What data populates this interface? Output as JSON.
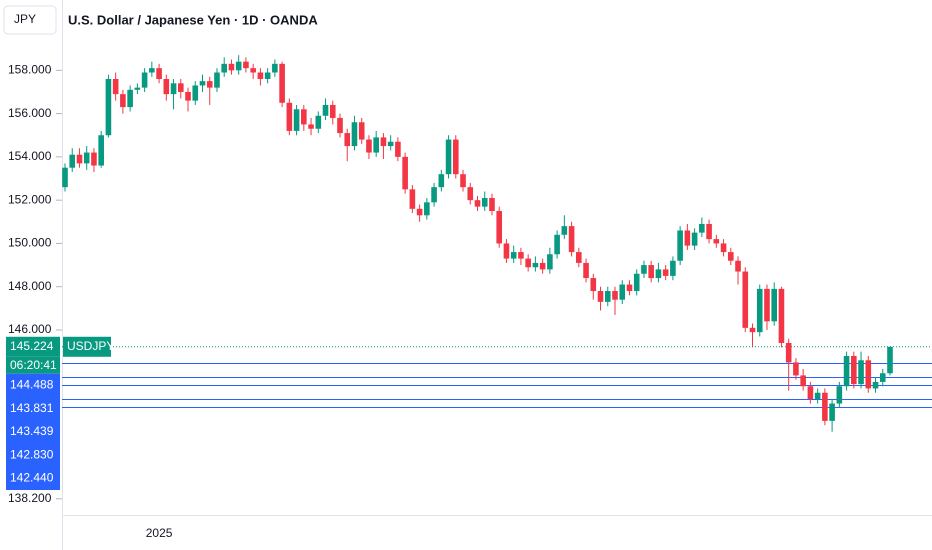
{
  "chart_data": {
    "type": "candlestick",
    "symbol_currency": "JPY",
    "title": "U.S. Dollar / Japanese Yen · 1D · OANDA",
    "xtick_labels": [
      "2025"
    ],
    "ylim": [
      137.45,
      161.25
    ],
    "yticks": [
      {
        "value": 158,
        "label": "158.000"
      },
      {
        "value": 156,
        "label": "156.000"
      },
      {
        "value": 154,
        "label": "154.000"
      },
      {
        "value": 152,
        "label": "152.000"
      },
      {
        "value": 150,
        "label": "150.000"
      },
      {
        "value": 148,
        "label": "148.000"
      },
      {
        "value": 146,
        "label": "146.000"
      },
      {
        "value": 138.2,
        "label": "138.200"
      }
    ],
    "up_color": "#089981",
    "down_color": "#f23645",
    "level_color": "#2962ff",
    "last_price": {
      "value": 145.224,
      "label": "145.224",
      "symbol": "USDJPY",
      "countdown": "06:20:41"
    },
    "levels": [
      {
        "value": 144.488,
        "label": "144.488"
      },
      {
        "value": 143.831,
        "label": "143.831"
      },
      {
        "value": 143.439,
        "label": "143.439"
      },
      {
        "value": 142.83,
        "label": "142.830"
      },
      {
        "value": 142.44,
        "label": "142.440"
      }
    ],
    "ohlc": [
      [
        152.6,
        153.7,
        152.4,
        153.5
      ],
      [
        153.5,
        154.4,
        153.3,
        154.1
      ],
      [
        154.1,
        154.4,
        153.5,
        153.7
      ],
      [
        153.7,
        154.5,
        153.4,
        154.2
      ],
      [
        154.2,
        154.4,
        153.3,
        153.6
      ],
      [
        153.6,
        155.2,
        153.5,
        155.0
      ],
      [
        155.0,
        157.8,
        154.9,
        157.6
      ],
      [
        157.6,
        157.9,
        156.6,
        156.9
      ],
      [
        156.9,
        157.1,
        156.0,
        156.3
      ],
      [
        156.3,
        157.3,
        156.1,
        157.1
      ],
      [
        157.1,
        157.4,
        156.9,
        157.2
      ],
      [
        157.2,
        158.1,
        157.0,
        157.9
      ],
      [
        157.9,
        158.4,
        157.7,
        158.1
      ],
      [
        158.1,
        158.3,
        157.4,
        157.6
      ],
      [
        157.6,
        157.8,
        156.6,
        156.9
      ],
      [
        156.9,
        157.6,
        156.2,
        157.4
      ],
      [
        157.4,
        157.6,
        156.7,
        157.0
      ],
      [
        157.0,
        157.2,
        156.1,
        156.6
      ],
      [
        156.6,
        157.5,
        156.4,
        157.3
      ],
      [
        157.3,
        157.8,
        157.0,
        157.5
      ],
      [
        157.5,
        157.7,
        156.4,
        157.2
      ],
      [
        157.2,
        158.1,
        157.0,
        157.9
      ],
      [
        157.9,
        158.6,
        157.7,
        158.3
      ],
      [
        158.3,
        158.5,
        157.8,
        158.0
      ],
      [
        158.0,
        158.7,
        157.8,
        158.4
      ],
      [
        158.4,
        158.6,
        157.9,
        158.1
      ],
      [
        158.1,
        158.3,
        157.6,
        157.9
      ],
      [
        157.9,
        158.1,
        157.3,
        157.6
      ],
      [
        157.6,
        158.1,
        157.4,
        157.9
      ],
      [
        157.9,
        158.5,
        157.7,
        158.3
      ],
      [
        158.3,
        158.4,
        156.3,
        156.5
      ],
      [
        156.5,
        156.7,
        155.0,
        155.2
      ],
      [
        155.2,
        156.4,
        155.0,
        156.2
      ],
      [
        156.2,
        156.4,
        155.2,
        155.5
      ],
      [
        155.5,
        155.8,
        155.0,
        155.3
      ],
      [
        155.3,
        156.1,
        155.1,
        155.9
      ],
      [
        155.9,
        156.7,
        155.7,
        156.4
      ],
      [
        156.4,
        156.6,
        155.5,
        155.8
      ],
      [
        155.8,
        156.0,
        154.9,
        155.1
      ],
      [
        155.1,
        155.3,
        153.8,
        154.5
      ],
      [
        154.5,
        155.9,
        154.3,
        155.6
      ],
      [
        155.6,
        155.8,
        154.6,
        154.8
      ],
      [
        154.8,
        155.0,
        153.9,
        154.2
      ],
      [
        154.2,
        155.2,
        154.0,
        154.9
      ],
      [
        154.9,
        155.1,
        153.9,
        154.5
      ],
      [
        154.5,
        155.0,
        154.3,
        154.7
      ],
      [
        154.7,
        154.9,
        153.8,
        154.0
      ],
      [
        154.0,
        154.2,
        152.3,
        152.5
      ],
      [
        152.5,
        152.7,
        151.4,
        151.6
      ],
      [
        151.6,
        151.8,
        151.0,
        151.3
      ],
      [
        151.3,
        152.1,
        151.1,
        151.9
      ],
      [
        151.9,
        152.8,
        151.7,
        152.6
      ],
      [
        152.6,
        153.4,
        152.4,
        153.2
      ],
      [
        153.2,
        155.0,
        153.0,
        154.8
      ],
      [
        154.8,
        155.0,
        153.0,
        153.2
      ],
      [
        153.2,
        153.4,
        152.4,
        152.6
      ],
      [
        152.6,
        152.8,
        151.8,
        152.0
      ],
      [
        152.0,
        152.2,
        151.5,
        151.7
      ],
      [
        151.7,
        152.4,
        151.5,
        152.1
      ],
      [
        152.1,
        152.3,
        151.3,
        151.5
      ],
      [
        151.5,
        151.7,
        149.8,
        150.0
      ],
      [
        150.0,
        150.2,
        149.1,
        149.3
      ],
      [
        149.3,
        149.9,
        149.1,
        149.6
      ],
      [
        149.6,
        149.8,
        149.0,
        149.3
      ],
      [
        149.3,
        149.5,
        148.7,
        148.9
      ],
      [
        148.9,
        149.4,
        148.7,
        149.1
      ],
      [
        149.1,
        149.3,
        148.6,
        148.8
      ],
      [
        148.8,
        149.8,
        148.6,
        149.5
      ],
      [
        149.5,
        150.6,
        149.3,
        150.4
      ],
      [
        150.4,
        151.3,
        150.2,
        150.8
      ],
      [
        150.8,
        151.0,
        149.4,
        149.6
      ],
      [
        149.6,
        149.8,
        148.9,
        149.1
      ],
      [
        149.1,
        149.3,
        148.2,
        148.4
      ],
      [
        148.4,
        148.6,
        147.4,
        147.8
      ],
      [
        147.8,
        148.0,
        146.9,
        147.3
      ],
      [
        147.3,
        148.0,
        147.1,
        147.8
      ],
      [
        147.8,
        148.0,
        146.7,
        147.4
      ],
      [
        147.4,
        148.3,
        147.2,
        148.1
      ],
      [
        148.1,
        148.3,
        147.6,
        147.8
      ],
      [
        147.8,
        148.8,
        147.6,
        148.6
      ],
      [
        148.6,
        149.2,
        148.4,
        149.0
      ],
      [
        149.0,
        149.2,
        148.2,
        148.4
      ],
      [
        148.4,
        149.1,
        148.2,
        148.8
      ],
      [
        148.8,
        149.0,
        148.3,
        148.5
      ],
      [
        148.5,
        149.4,
        148.3,
        149.2
      ],
      [
        149.2,
        150.8,
        149.0,
        150.6
      ],
      [
        150.6,
        150.9,
        149.7,
        149.9
      ],
      [
        149.9,
        150.7,
        149.7,
        150.5
      ],
      [
        150.5,
        151.2,
        150.3,
        150.9
      ],
      [
        150.9,
        151.1,
        150.0,
        150.2
      ],
      [
        150.2,
        150.4,
        149.8,
        150.0
      ],
      [
        150.0,
        150.2,
        149.4,
        149.6
      ],
      [
        149.6,
        149.8,
        149.0,
        149.2
      ],
      [
        149.2,
        149.4,
        148.1,
        148.7
      ],
      [
        148.7,
        148.9,
        145.9,
        146.1
      ],
      [
        146.1,
        146.3,
        145.2,
        145.9
      ],
      [
        145.9,
        148.1,
        145.7,
        147.9
      ],
      [
        147.9,
        148.1,
        146.0,
        146.4
      ],
      [
        146.4,
        148.2,
        146.2,
        147.9
      ],
      [
        147.9,
        148.0,
        145.2,
        145.4
      ],
      [
        145.4,
        145.6,
        143.2,
        144.5
      ],
      [
        144.5,
        144.7,
        143.7,
        143.9
      ],
      [
        143.9,
        144.2,
        143.2,
        143.4
      ],
      [
        143.4,
        143.6,
        142.6,
        142.8
      ],
      [
        142.8,
        143.3,
        142.6,
        143.1
      ],
      [
        143.1,
        143.3,
        141.6,
        141.8
      ],
      [
        141.8,
        142.8,
        141.3,
        142.6
      ],
      [
        142.6,
        143.6,
        142.4,
        143.4
      ],
      [
        143.4,
        145.0,
        143.2,
        144.8
      ],
      [
        144.8,
        145.0,
        143.3,
        143.5
      ],
      [
        143.5,
        145.0,
        143.3,
        144.6
      ],
      [
        144.6,
        144.8,
        143.1,
        143.3
      ],
      [
        143.3,
        143.8,
        143.1,
        143.6
      ],
      [
        143.6,
        144.2,
        143.4,
        144.0
      ],
      [
        144.0,
        145.224,
        143.9,
        145.224
      ]
    ]
  }
}
